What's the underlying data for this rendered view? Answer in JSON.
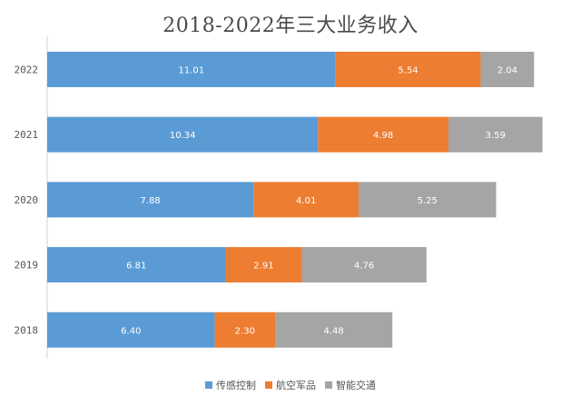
{
  "chart_data": {
    "type": "bar",
    "orientation": "horizontal",
    "stacked": true,
    "title": "2018-2022年三大业务收入",
    "categories": [
      "2022",
      "2021",
      "2020",
      "2019",
      "2018"
    ],
    "series": [
      {
        "name": "传感控制",
        "color": "#5B9BD5",
        "values": [
          11.01,
          10.34,
          7.88,
          6.81,
          6.4
        ],
        "labels": [
          "11.01",
          "10.34",
          "7.88",
          "6.81",
          "6.40"
        ]
      },
      {
        "name": "航空军品",
        "color": "#ED7D31",
        "values": [
          5.54,
          4.98,
          4.01,
          2.91,
          2.3
        ],
        "labels": [
          "5.54",
          "4.98",
          "4.01",
          "2.91",
          "2.30"
        ]
      },
      {
        "name": "智能交通",
        "color": "#A5A5A5",
        "values": [
          2.04,
          3.59,
          5.25,
          4.76,
          4.48
        ],
        "labels": [
          "2.04",
          "3.59",
          "5.25",
          "4.76",
          "4.48"
        ]
      }
    ],
    "xlim": [
      0,
      20
    ],
    "grid": false,
    "legend": "bottom"
  }
}
